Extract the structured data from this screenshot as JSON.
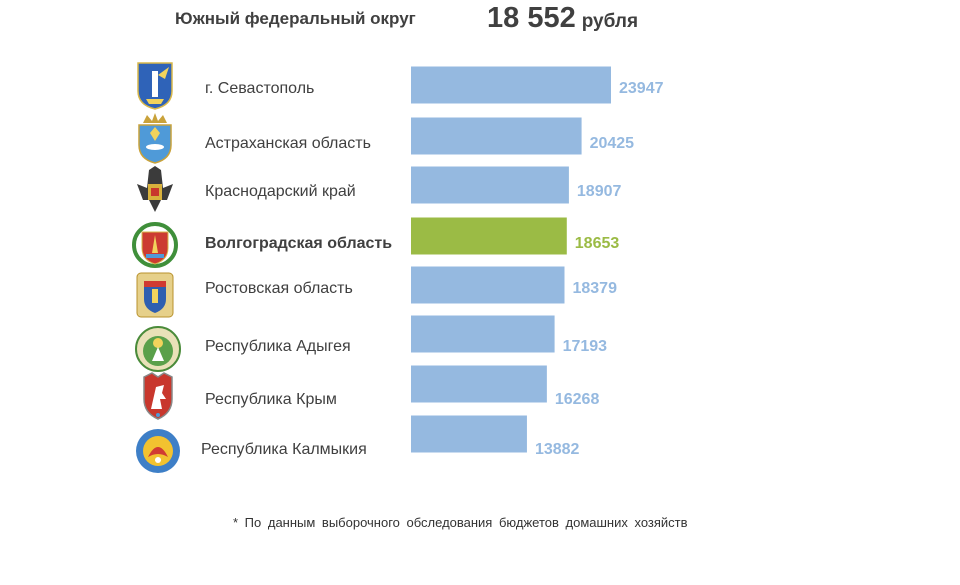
{
  "header": {
    "title": "Южный федеральный округ",
    "total_value": "18 552",
    "total_unit": "рубля"
  },
  "chart_data": {
    "type": "bar",
    "orientation": "horizontal",
    "categories": [
      "г. Севастополь",
      "Астраханская область",
      "Краснодарский край",
      "Волгоградская область",
      "Ростовская область",
      "Республика Адыгея",
      "Республика Крым",
      "Республика Калмыкия"
    ],
    "values": [
      23947,
      20425,
      18907,
      18653,
      18379,
      17193,
      16268,
      13882
    ],
    "highlight_category": "Волгоградская область",
    "colors": {
      "bar": "#95b9e0",
      "bar_highlight": "#9bbb45",
      "label": "#95b9e0",
      "label_highlight": "#9bbb45",
      "category_text": "#404040"
    },
    "icons": [
      "sevastopol-coat-of-arms-icon",
      "astrakhan-coat-of-arms-icon",
      "krasnodar-coat-of-arms-icon",
      "volgograd-coat-of-arms-icon",
      "rostov-coat-of-arms-icon",
      "adygea-coat-of-arms-icon",
      "crimea-coat-of-arms-icon",
      "kalmykia-coat-of-arms-icon"
    ],
    "grid": false,
    "legend": "none"
  },
  "footnote": "* По данным  выборочного обследования бюджетов домашних хозяйств"
}
